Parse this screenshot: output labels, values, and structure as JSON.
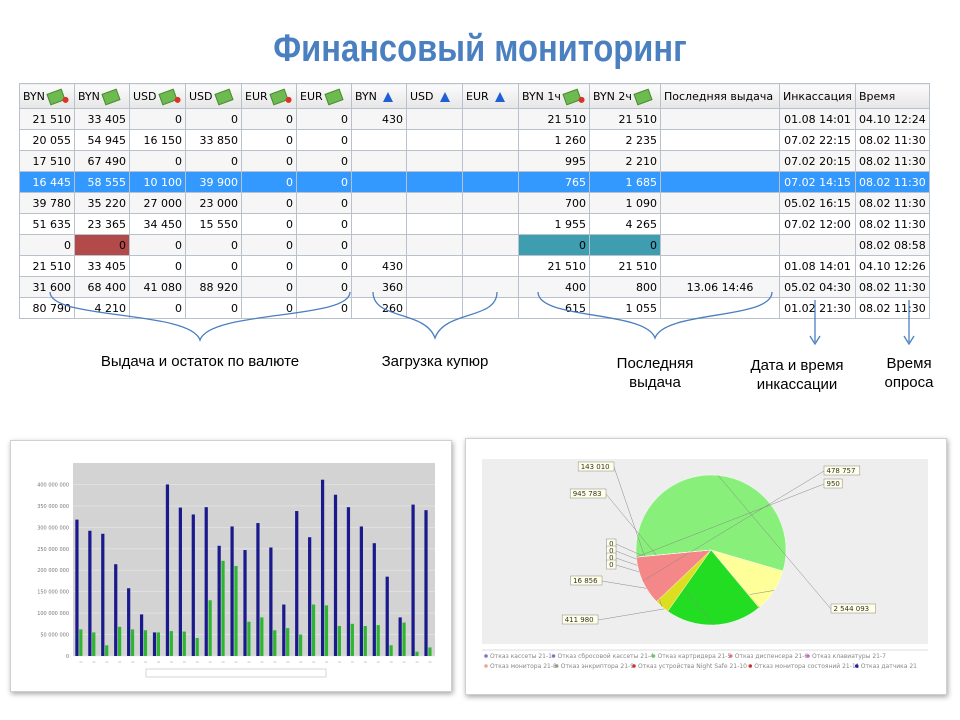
{
  "title": "Финансовый мониторинг",
  "table": {
    "headers": [
      "BYN",
      "BYN",
      "USD",
      "USD",
      "EUR",
      "EUR",
      "BYN",
      "USD",
      "EUR",
      "BYN 1ч",
      "BYN 2ч",
      "Последняя выдача",
      "Инкассация",
      "Время"
    ],
    "header_icons": [
      "money-red",
      "money-green",
      "money-red",
      "money-green",
      "money-red",
      "money-green",
      "money-arrow",
      "money-arrow",
      "money-arrow",
      "money-red",
      "money-green",
      "",
      "",
      ""
    ],
    "rows": [
      {
        "cells": [
          "21 510",
          "33 405",
          "0",
          "0",
          "0",
          "0",
          "430",
          "",
          "",
          "21 510",
          "21 510",
          "",
          "01.08 14:01",
          "04.10 12:24"
        ],
        "state": ""
      },
      {
        "cells": [
          "20 055",
          "54 945",
          "16 150",
          "33 850",
          "0",
          "0",
          "",
          "",
          "",
          "1 260",
          "2 235",
          "",
          "07.02 22:15",
          "08.02 11:30"
        ],
        "state": ""
      },
      {
        "cells": [
          "17 510",
          "67 490",
          "0",
          "0",
          "0",
          "0",
          "",
          "",
          "",
          "995",
          "2 210",
          "",
          "07.02 20:15",
          "08.02 11:30"
        ],
        "state": ""
      },
      {
        "cells": [
          "16 445",
          "58 555",
          "10 100",
          "39 900",
          "0",
          "0",
          "",
          "",
          "",
          "765",
          "1 685",
          "",
          "07.02 14:15",
          "08.02 11:30"
        ],
        "state": "selected"
      },
      {
        "cells": [
          "39 780",
          "35 220",
          "27 000",
          "23 000",
          "0",
          "0",
          "",
          "",
          "",
          "700",
          "1 090",
          "",
          "05.02 16:15",
          "08.02 11:30"
        ],
        "state": ""
      },
      {
        "cells": [
          "51 635",
          "23 365",
          "34 450",
          "15 550",
          "0",
          "0",
          "",
          "",
          "",
          "1 955",
          "4 265",
          "",
          "07.02 12:00",
          "08.02 11:30"
        ],
        "state": ""
      },
      {
        "cells": [
          "0",
          "0",
          "0",
          "0",
          "0",
          "0",
          "",
          "",
          "",
          "0",
          "0",
          "",
          "",
          "08.02 08:58"
        ],
        "state": "alert"
      },
      {
        "cells": [
          "21 510",
          "33 405",
          "0",
          "0",
          "0",
          "0",
          "430",
          "",
          "",
          "21 510",
          "21 510",
          "",
          "01.08 14:01",
          "04.10 12:26"
        ],
        "state": ""
      },
      {
        "cells": [
          "31 600",
          "68 400",
          "41 080",
          "88 920",
          "0",
          "0",
          "360",
          "",
          "",
          "400",
          "800",
          "13.06 14:46",
          "05.02 04:30",
          "08.02 11:30"
        ],
        "state": ""
      },
      {
        "cells": [
          "80 790",
          "4 210",
          "0",
          "0",
          "0",
          "0",
          "260",
          "",
          "",
          "615",
          "1 055",
          "",
          "01.02 21:30",
          "08.02 11:30"
        ],
        "state": ""
      }
    ]
  },
  "annotations": {
    "cash": "Выдача и остаток по валюте",
    "loading": "Загрузка купюр",
    "last_1": "Последняя",
    "last_2": "выдача",
    "collect_1": "Дата и время",
    "collect_2": "инкассации",
    "poll_1": "Время",
    "poll_2": "опроса"
  },
  "colors": {
    "title": "#4a7fc0",
    "selected_row": "#3399ff",
    "alert_red": "#b34a4a",
    "alert_teal": "#3f9db0",
    "bar_blue": "#1a1a8c",
    "bar_green": "#2fb52f"
  },
  "chart_data": [
    {
      "type": "bar",
      "ylim": [
        0,
        450000000
      ],
      "y_ticks": [
        "0",
        "50 000 000",
        "100 000 000",
        "150 000 000",
        "200 000 000",
        "250 000 000",
        "300 000 000",
        "350 000 000",
        "400 000 000"
      ],
      "series": [
        {
          "values": [
            318000000,
            292000000,
            285000000,
            214000000,
            158000000,
            97000000,
            55000000,
            400000000,
            346000000,
            330000000,
            347000000,
            257000000,
            302000000,
            247000000,
            310000000,
            253000000,
            120000000,
            338000000,
            277000000,
            411000000,
            376000000,
            347000000,
            302000000,
            263000000,
            185000000,
            90000000,
            353000000,
            340000000
          ]
        },
        {
          "values": [
            62000000,
            55000000,
            25000000,
            68000000,
            62000000,
            60000000,
            55000000,
            58000000,
            57000000,
            42000000,
            130000000,
            222000000,
            210000000,
            80000000,
            90000000,
            60000000,
            65000000,
            50000000,
            120000000,
            118000000,
            70000000,
            75000000,
            70000000,
            72000000,
            25000000,
            78000000,
            10000000,
            20000000
          ]
        }
      ]
    },
    {
      "type": "pie",
      "slices": [
        {
          "label": "2 544 093",
          "value": 2544093,
          "color": "#88f07a"
        },
        {
          "label": "411 980",
          "value": 411980,
          "color": "#ffff99"
        },
        {
          "label": "16 856",
          "value": 16856,
          "color": "#ffee66"
        },
        {
          "label": "0",
          "value": 0,
          "color": "#cccccc"
        },
        {
          "label": "0",
          "value": 0,
          "color": "#cccccc"
        },
        {
          "label": "0",
          "value": 0,
          "color": "#cccccc"
        },
        {
          "label": "0",
          "value": 0,
          "color": "#cccccc"
        },
        {
          "label": "945 783",
          "value": 945783,
          "color": "#22dd22"
        },
        {
          "label": "143 010",
          "value": 143010,
          "color": "#dddd22"
        },
        {
          "label": "478 757",
          "value": 478757,
          "color": "#f48888"
        },
        {
          "label": "950",
          "value": 950,
          "color": "#f48888"
        }
      ],
      "legend": [
        {
          "text": "Отказ кассеты 21-1",
          "color": "#7777cc"
        },
        {
          "text": "Отказ сбросовой кассеты 21-4",
          "color": "#7777cc"
        },
        {
          "text": "Отказ картридера 21-5",
          "color": "#66cc66"
        },
        {
          "text": "Отказ диспенсера 21-6",
          "color": "#dd7777"
        },
        {
          "text": "Отказ клавиатуры 21-7",
          "color": "#cc66cc"
        },
        {
          "text": "Отказ монитора 21-8",
          "color": "#f0a0a0"
        },
        {
          "text": "Отказ энкриптора 21-9",
          "color": "#999999"
        },
        {
          "text": "Отказ устройства Night Safe 21-10",
          "color": "#cc3333"
        },
        {
          "text": "Отказ монитора состояний 21-11",
          "color": "#cc3333"
        },
        {
          "text": "Отказ датчика 21",
          "color": "#2222aa"
        }
      ]
    }
  ]
}
